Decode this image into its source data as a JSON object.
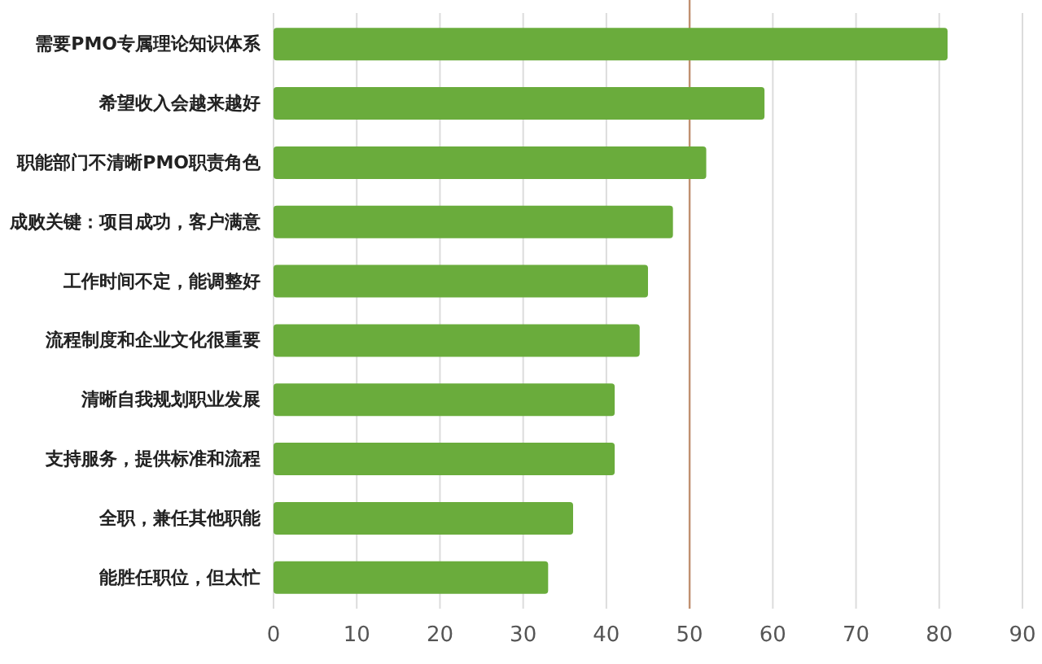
{
  "chart_data": {
    "type": "bar",
    "orientation": "horizontal",
    "categories": [
      "需要PMO专属理论知识体系",
      "希望收入会越来越好",
      "职能部门不清晰PMO职责角色",
      "成败关键：项目成功，客户满意",
      "工作时间不定，能调整好",
      "流程制度和企业文化很重要",
      "清晰自我规划职业发展",
      "支持服务，提供标准和流程",
      "全职，兼任其他职能",
      "能胜任职位，但太忙"
    ],
    "values": [
      81,
      59,
      52,
      48,
      45,
      44,
      41,
      41,
      36,
      33
    ],
    "color": "#6aac3c",
    "xlim": [
      0,
      90
    ],
    "xticks": [
      0,
      10,
      20,
      30,
      40,
      50,
      60,
      70,
      80,
      90
    ],
    "grid": "x",
    "ref_lines": [
      {
        "axis": "x",
        "value": 50,
        "color": "#c09070"
      }
    ]
  }
}
